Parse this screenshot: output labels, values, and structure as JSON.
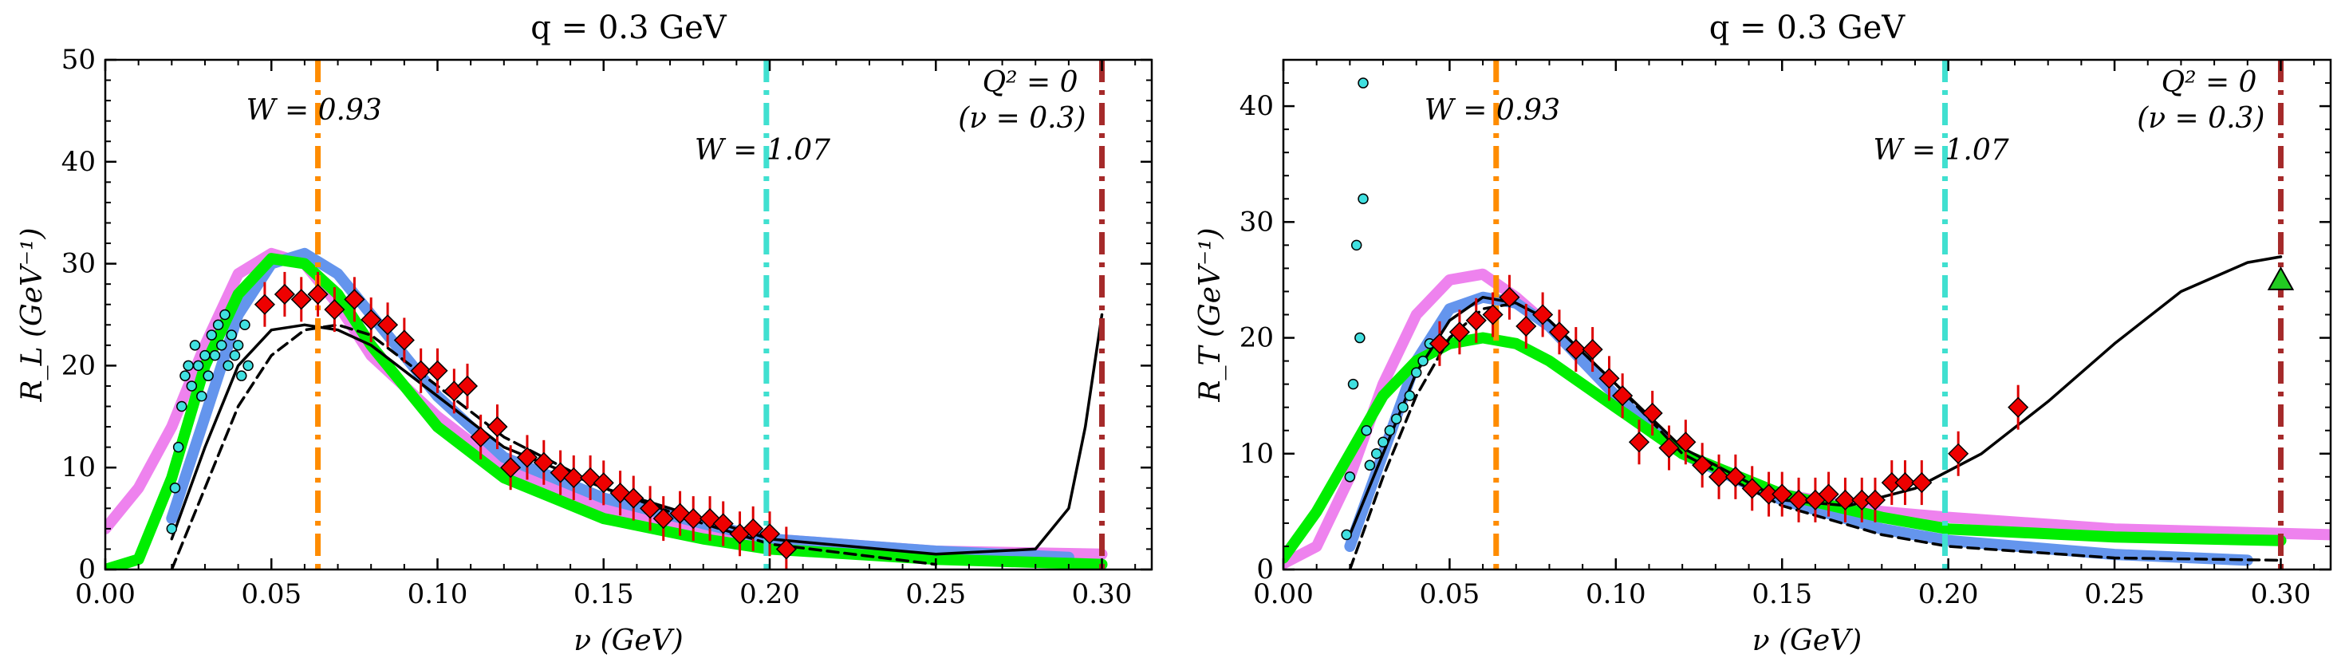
{
  "chart_data": [
    {
      "type": "line",
      "title": "q = 0.3 GeV",
      "xlabel": "ν (GeV)",
      "ylabel": "R_L (GeV⁻¹)",
      "xlim": [
        0,
        0.315
      ],
      "ylim": [
        0,
        50
      ],
      "xticks": [
        "0.00",
        "0.05",
        "0.10",
        "0.15",
        "0.20",
        "0.25",
        "0.30"
      ],
      "yticks": [
        "0",
        "10",
        "20",
        "30",
        "40",
        "50"
      ],
      "vlines": [
        {
          "x": 0.064,
          "color": "#ff8c00",
          "label": "W = 0.93"
        },
        {
          "x": 0.199,
          "color": "#40e0d0",
          "label": "W = 1.07"
        },
        {
          "x": 0.3,
          "color": "#a52a2a",
          "label": "Q² = 0",
          "sublabel": "(ν = 0.3)"
        }
      ],
      "series": [
        {
          "color": "#ee82ee",
          "style": "thick",
          "x": [
            0,
            0.01,
            0.02,
            0.03,
            0.04,
            0.05,
            0.06,
            0.07,
            0.08,
            0.1,
            0.12,
            0.15,
            0.18,
            0.2,
            0.25,
            0.3
          ],
          "y": [
            4,
            8,
            14,
            22,
            29,
            31,
            30,
            26,
            21,
            15,
            10,
            6,
            4,
            3,
            1.8,
            1.5
          ]
        },
        {
          "color": "#6495ed",
          "style": "thick",
          "x": [
            0.02,
            0.03,
            0.04,
            0.05,
            0.06,
            0.07,
            0.08,
            0.1,
            0.12,
            0.15,
            0.18,
            0.2,
            0.25,
            0.29
          ],
          "y": [
            5,
            15,
            25,
            30,
            31,
            29,
            25,
            17,
            11,
            7,
            4.5,
            3,
            1.8,
            1.2
          ]
        },
        {
          "color": "#00ee00",
          "style": "thick",
          "x": [
            0,
            0.01,
            0.02,
            0.03,
            0.04,
            0.05,
            0.06,
            0.07,
            0.08,
            0.1,
            0.12,
            0.15,
            0.18,
            0.2,
            0.25,
            0.3
          ],
          "y": [
            0,
            1,
            9,
            20,
            27,
            30.5,
            30,
            27,
            22,
            14,
            9,
            5,
            3,
            2,
            1,
            0.5
          ]
        },
        {
          "color": "#000000",
          "style": "solid",
          "x": [
            0.02,
            0.03,
            0.04,
            0.05,
            0.06,
            0.07,
            0.08,
            0.1,
            0.12,
            0.15,
            0.18,
            0.2,
            0.25,
            0.28,
            0.29,
            0.295,
            0.3
          ],
          "y": [
            3,
            12,
            20,
            23.5,
            24,
            23.5,
            22,
            17,
            12,
            8,
            5,
            3,
            1.5,
            2,
            6,
            14,
            25
          ]
        },
        {
          "color": "#000000",
          "style": "dashed",
          "x": [
            0.02,
            0.03,
            0.04,
            0.05,
            0.06,
            0.07,
            0.08,
            0.1,
            0.12,
            0.15,
            0.18,
            0.2,
            0.25
          ],
          "y": [
            0,
            8,
            16,
            21,
            23.5,
            24,
            23,
            18,
            13,
            8,
            4.5,
            2.5,
            0.5
          ]
        }
      ],
      "points_red": [
        {
          "x": 0.048,
          "y": 26
        },
        {
          "x": 0.054,
          "y": 27
        },
        {
          "x": 0.059,
          "y": 26.5
        },
        {
          "x": 0.064,
          "y": 27
        },
        {
          "x": 0.069,
          "y": 25.5
        },
        {
          "x": 0.075,
          "y": 26.5
        },
        {
          "x": 0.08,
          "y": 24.5
        },
        {
          "x": 0.085,
          "y": 24
        },
        {
          "x": 0.09,
          "y": 22.5
        },
        {
          "x": 0.095,
          "y": 19.5
        },
        {
          "x": 0.1,
          "y": 19.5
        },
        {
          "x": 0.105,
          "y": 17.5
        },
        {
          "x": 0.109,
          "y": 18
        },
        {
          "x": 0.113,
          "y": 13
        },
        {
          "x": 0.118,
          "y": 14
        },
        {
          "x": 0.122,
          "y": 10
        },
        {
          "x": 0.127,
          "y": 11
        },
        {
          "x": 0.132,
          "y": 10.5
        },
        {
          "x": 0.137,
          "y": 9.5
        },
        {
          "x": 0.141,
          "y": 9
        },
        {
          "x": 0.146,
          "y": 9
        },
        {
          "x": 0.15,
          "y": 8.5
        },
        {
          "x": 0.155,
          "y": 7.5
        },
        {
          "x": 0.159,
          "y": 7
        },
        {
          "x": 0.164,
          "y": 6
        },
        {
          "x": 0.168,
          "y": 5
        },
        {
          "x": 0.173,
          "y": 5.5
        },
        {
          "x": 0.177,
          "y": 5
        },
        {
          "x": 0.182,
          "y": 5
        },
        {
          "x": 0.186,
          "y": 4.5
        },
        {
          "x": 0.191,
          "y": 3.5
        },
        {
          "x": 0.195,
          "y": 4
        },
        {
          "x": 0.2,
          "y": 3.5
        },
        {
          "x": 0.205,
          "y": 2
        }
      ],
      "points_cyan": [
        {
          "x": 0.02,
          "y": 4
        },
        {
          "x": 0.021,
          "y": 8
        },
        {
          "x": 0.022,
          "y": 12
        },
        {
          "x": 0.023,
          "y": 16
        },
        {
          "x": 0.024,
          "y": 19
        },
        {
          "x": 0.025,
          "y": 20
        },
        {
          "x": 0.026,
          "y": 18
        },
        {
          "x": 0.027,
          "y": 22
        },
        {
          "x": 0.028,
          "y": 20
        },
        {
          "x": 0.029,
          "y": 17
        },
        {
          "x": 0.03,
          "y": 21
        },
        {
          "x": 0.031,
          "y": 19
        },
        {
          "x": 0.032,
          "y": 23
        },
        {
          "x": 0.033,
          "y": 21
        },
        {
          "x": 0.034,
          "y": 24
        },
        {
          "x": 0.035,
          "y": 22
        },
        {
          "x": 0.036,
          "y": 25
        },
        {
          "x": 0.037,
          "y": 20
        },
        {
          "x": 0.038,
          "y": 23
        },
        {
          "x": 0.039,
          "y": 21
        },
        {
          "x": 0.04,
          "y": 22
        },
        {
          "x": 0.041,
          "y": 19
        },
        {
          "x": 0.042,
          "y": 24
        },
        {
          "x": 0.043,
          "y": 20
        }
      ]
    },
    {
      "type": "line",
      "title": "q = 0.3 GeV",
      "xlabel": "ν (GeV)",
      "ylabel": "R_T (GeV⁻¹)",
      "xlim": [
        0,
        0.315
      ],
      "ylim": [
        0,
        44
      ],
      "xticks": [
        "0.00",
        "0.05",
        "0.10",
        "0.15",
        "0.20",
        "0.25",
        "0.30"
      ],
      "yticks": [
        "0",
        "10",
        "20",
        "30",
        "40"
      ],
      "vlines": [
        {
          "x": 0.064,
          "color": "#ff8c00",
          "label": "W = 0.93"
        },
        {
          "x": 0.199,
          "color": "#40e0d0",
          "label": "W = 1.07"
        },
        {
          "x": 0.3,
          "color": "#a52a2a",
          "label": "Q² = 0",
          "sublabel": "(ν = 0.3)"
        }
      ],
      "series": [
        {
          "color": "#ee82ee",
          "style": "thick",
          "x": [
            0,
            0.01,
            0.02,
            0.03,
            0.04,
            0.05,
            0.06,
            0.07,
            0.08,
            0.1,
            0.12,
            0.15,
            0.18,
            0.2,
            0.25,
            0.315
          ],
          "y": [
            0.5,
            2,
            8,
            16,
            22,
            25,
            25.5,
            23.5,
            21,
            15,
            10,
            6.5,
            5,
            4.5,
            3.5,
            3
          ]
        },
        {
          "color": "#6495ed",
          "style": "thick",
          "x": [
            0.02,
            0.03,
            0.04,
            0.05,
            0.06,
            0.07,
            0.08,
            0.1,
            0.12,
            0.15,
            0.18,
            0.2,
            0.25,
            0.29
          ],
          "y": [
            2,
            10,
            18,
            22.5,
            23.5,
            23,
            21,
            15,
            10,
            6,
            3.5,
            2.5,
            1.3,
            0.8
          ]
        },
        {
          "color": "#00ee00",
          "style": "thick",
          "x": [
            0,
            0.01,
            0.02,
            0.03,
            0.04,
            0.05,
            0.06,
            0.07,
            0.08,
            0.1,
            0.12,
            0.15,
            0.18,
            0.2,
            0.25,
            0.3
          ],
          "y": [
            1,
            5,
            10,
            15,
            18,
            19.5,
            20,
            19.5,
            18,
            14,
            10,
            6.5,
            4.5,
            3.5,
            2.8,
            2.5
          ]
        },
        {
          "color": "#000000",
          "style": "solid",
          "x": [
            0.02,
            0.03,
            0.04,
            0.05,
            0.06,
            0.07,
            0.08,
            0.1,
            0.12,
            0.15,
            0.17,
            0.19,
            0.21,
            0.23,
            0.25,
            0.27,
            0.29,
            0.3
          ],
          "y": [
            3,
            10,
            17,
            21.5,
            23.5,
            23,
            21.5,
            16,
            10.5,
            6,
            5.5,
            7,
            10,
            14.5,
            19.5,
            24,
            26.5,
            27
          ]
        },
        {
          "color": "#000000",
          "style": "dashed",
          "x": [
            0.02,
            0.03,
            0.04,
            0.05,
            0.06,
            0.07,
            0.08,
            0.1,
            0.12,
            0.15,
            0.18,
            0.2,
            0.25,
            0.3
          ],
          "y": [
            0,
            8,
            15,
            20,
            22.5,
            23,
            21.5,
            16,
            10,
            5.5,
            3,
            2,
            1,
            0.8
          ]
        }
      ],
      "points_red": [
        {
          "x": 0.047,
          "y": 19.5
        },
        {
          "x": 0.053,
          "y": 20.5
        },
        {
          "x": 0.058,
          "y": 21.5
        },
        {
          "x": 0.063,
          "y": 22
        },
        {
          "x": 0.068,
          "y": 23.5
        },
        {
          "x": 0.073,
          "y": 21
        },
        {
          "x": 0.078,
          "y": 22
        },
        {
          "x": 0.083,
          "y": 20.5
        },
        {
          "x": 0.088,
          "y": 19
        },
        {
          "x": 0.093,
          "y": 19
        },
        {
          "x": 0.098,
          "y": 16.5
        },
        {
          "x": 0.102,
          "y": 15
        },
        {
          "x": 0.107,
          "y": 11
        },
        {
          "x": 0.111,
          "y": 13.5
        },
        {
          "x": 0.116,
          "y": 10.5
        },
        {
          "x": 0.121,
          "y": 11
        },
        {
          "x": 0.126,
          "y": 9
        },
        {
          "x": 0.131,
          "y": 8
        },
        {
          "x": 0.136,
          "y": 8
        },
        {
          "x": 0.141,
          "y": 7
        },
        {
          "x": 0.146,
          "y": 6.5
        },
        {
          "x": 0.15,
          "y": 6.5
        },
        {
          "x": 0.155,
          "y": 6
        },
        {
          "x": 0.16,
          "y": 6
        },
        {
          "x": 0.164,
          "y": 6.5
        },
        {
          "x": 0.169,
          "y": 6
        },
        {
          "x": 0.174,
          "y": 6
        },
        {
          "x": 0.178,
          "y": 6
        },
        {
          "x": 0.183,
          "y": 7.5
        },
        {
          "x": 0.187,
          "y": 7.5
        },
        {
          "x": 0.192,
          "y": 7.5
        },
        {
          "x": 0.203,
          "y": 10
        },
        {
          "x": 0.221,
          "y": 14
        }
      ],
      "points_cyan": [
        {
          "x": 0.019,
          "y": 3
        },
        {
          "x": 0.02,
          "y": 8
        },
        {
          "x": 0.021,
          "y": 16
        },
        {
          "x": 0.022,
          "y": 28
        },
        {
          "x": 0.023,
          "y": 20
        },
        {
          "x": 0.024,
          "y": 32
        },
        {
          "x": 0.024,
          "y": 42
        },
        {
          "x": 0.025,
          "y": 12
        },
        {
          "x": 0.026,
          "y": 9
        },
        {
          "x": 0.028,
          "y": 10
        },
        {
          "x": 0.03,
          "y": 11
        },
        {
          "x": 0.032,
          "y": 12
        },
        {
          "x": 0.034,
          "y": 13
        },
        {
          "x": 0.036,
          "y": 14
        },
        {
          "x": 0.038,
          "y": 15
        },
        {
          "x": 0.04,
          "y": 17
        },
        {
          "x": 0.042,
          "y": 18
        },
        {
          "x": 0.044,
          "y": 19.5
        }
      ],
      "points_green_triangle": [
        {
          "x": 0.3,
          "y": 25
        }
      ]
    }
  ]
}
